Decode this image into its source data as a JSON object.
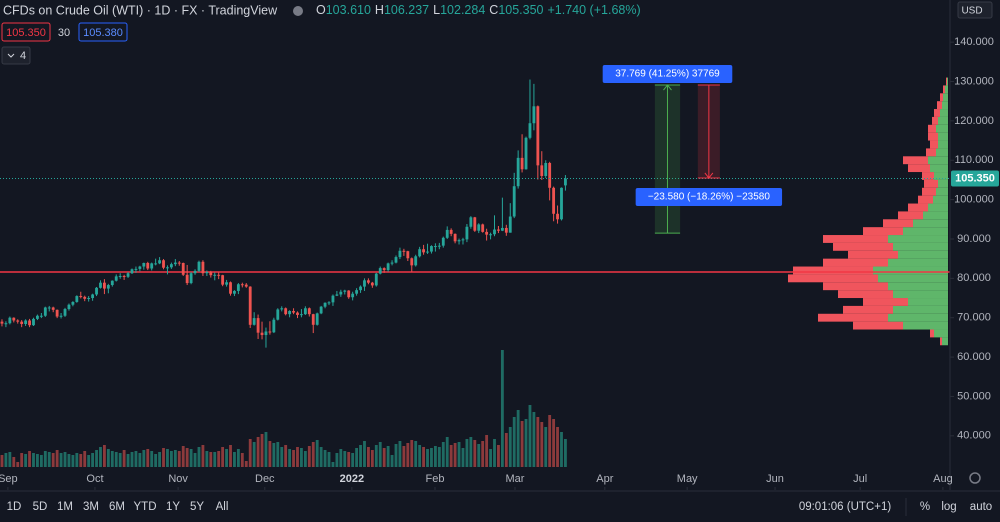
{
  "chart_data": {
    "type": "candlestick",
    "title": "CFDs on Crude Oil (WTI) · 1D · FX · TradingView",
    "header_ohlc": [
      {
        "label": "O",
        "value": "103.610"
      },
      {
        "label": "H",
        "value": "106.237"
      },
      {
        "label": "L",
        "value": "102.284"
      },
      {
        "label": "C",
        "value": "105.350"
      }
    ],
    "change": "+1.740 (+1.68%)",
    "bid": "105.350",
    "spread": "30",
    "ask": "105.380",
    "indicators": "4",
    "currency": "USD",
    "price_tag": "105.350",
    "up_color": "#26a69a",
    "down_color": "#ef5350",
    "volume_up_color": "#1f6b63",
    "volume_down_color": "#8c3a3c",
    "ylim": [
      27,
      150.7
    ],
    "yticks": [
      {
        "value": 40,
        "label": "40.000"
      },
      {
        "value": 50,
        "label": "50.000"
      },
      {
        "value": 60,
        "label": "60.000"
      },
      {
        "value": 70,
        "label": "70.000"
      },
      {
        "value": 80,
        "label": "80.000"
      },
      {
        "value": 90,
        "label": "90.000"
      },
      {
        "value": 100,
        "label": "100.000"
      },
      {
        "value": 110,
        "label": "110.000"
      },
      {
        "value": 120,
        "label": "120.000"
      },
      {
        "value": 130,
        "label": "130.000"
      },
      {
        "value": 140,
        "label": "140.000"
      }
    ],
    "xlim": [
      -0.5,
      240.6
    ],
    "xticks": [
      {
        "value": 1.5,
        "label": "Sep"
      },
      {
        "value": 23.6,
        "label": "Oct"
      },
      {
        "value": 44.7,
        "label": "Nov"
      },
      {
        "value": 66.7,
        "label": "Dec"
      },
      {
        "value": 88.8,
        "label": "2022"
      },
      {
        "value": 109.9,
        "label": "Feb"
      },
      {
        "value": 130.2,
        "label": "Mar"
      },
      {
        "value": 153,
        "label": "Apr"
      },
      {
        "value": 173.9,
        "label": "May"
      },
      {
        "value": 196.2,
        "label": "Jun"
      },
      {
        "value": 217.8,
        "label": "Jul"
      },
      {
        "value": 238.8,
        "label": "Aug"
      }
    ],
    "ohlc": [
      [
        69.0,
        69.6,
        67.8,
        68.5
      ],
      [
        68.5,
        69.1,
        67.6,
        68.6
      ],
      [
        68.6,
        70.3,
        68.3,
        70.0
      ],
      [
        70.0,
        70.1,
        68.8,
        69.3
      ],
      [
        69.3,
        69.6,
        68.5,
        69.0
      ],
      [
        69.0,
        69.4,
        67.6,
        68.4
      ],
      [
        68.4,
        69.6,
        67.9,
        69.3
      ],
      [
        69.3,
        69.7,
        67.6,
        68.1
      ],
      [
        68.1,
        70.0,
        67.9,
        69.7
      ],
      [
        69.7,
        70.8,
        69.4,
        70.5
      ],
      [
        70.5,
        71.2,
        69.9,
        70.5
      ],
      [
        70.5,
        72.8,
        70.2,
        72.6
      ],
      [
        72.6,
        73.0,
        71.6,
        72.6
      ],
      [
        72.6,
        72.8,
        71.4,
        72.0
      ],
      [
        72.0,
        72.1,
        69.9,
        70.3
      ],
      [
        70.3,
        71.2,
        69.8,
        70.5
      ],
      [
        70.5,
        72.5,
        70.2,
        72.2
      ],
      [
        72.2,
        73.6,
        71.8,
        73.3
      ],
      [
        73.3,
        74.2,
        72.9,
        74.0
      ],
      [
        74.0,
        75.7,
        73.8,
        75.5
      ],
      [
        75.5,
        76.6,
        74.9,
        75.3
      ],
      [
        75.3,
        75.6,
        74.2,
        74.8
      ],
      [
        74.8,
        75.5,
        74.1,
        75.0
      ],
      [
        75.0,
        76.1,
        74.3,
        75.9
      ],
      [
        75.9,
        77.8,
        75.5,
        77.6
      ],
      [
        77.6,
        79.5,
        77.4,
        78.9
      ],
      [
        78.9,
        79.8,
        76.0,
        77.4
      ],
      [
        77.4,
        78.6,
        76.2,
        78.3
      ],
      [
        78.3,
        79.5,
        77.9,
        79.4
      ],
      [
        79.4,
        81.0,
        79.2,
        80.5
      ],
      [
        80.5,
        81.3,
        79.9,
        80.6
      ],
      [
        80.6,
        80.9,
        79.6,
        80.4
      ],
      [
        80.4,
        81.6,
        80.1,
        81.3
      ],
      [
        81.3,
        82.5,
        81.1,
        82.3
      ],
      [
        82.3,
        83.0,
        81.4,
        82.4
      ],
      [
        82.4,
        83.2,
        81.8,
        83.0
      ],
      [
        83.0,
        84.0,
        82.2,
        83.9
      ],
      [
        83.9,
        84.2,
        82.1,
        82.5
      ],
      [
        82.5,
        84.0,
        82.0,
        83.8
      ],
      [
        83.8,
        85.0,
        83.3,
        83.8
      ],
      [
        83.8,
        85.4,
        83.6,
        84.6
      ],
      [
        84.6,
        84.9,
        82.3,
        82.7
      ],
      [
        82.7,
        83.3,
        81.0,
        82.8
      ],
      [
        82.8,
        84.0,
        82.4,
        83.6
      ],
      [
        83.6,
        84.9,
        83.1,
        84.0
      ],
      [
        84.0,
        84.4,
        83.2,
        83.9
      ],
      [
        83.9,
        84.0,
        80.6,
        80.9
      ],
      [
        80.9,
        83.4,
        78.3,
        78.8
      ],
      [
        78.8,
        81.6,
        78.5,
        81.3
      ],
      [
        81.3,
        82.3,
        80.9,
        81.9
      ],
      [
        81.9,
        84.5,
        81.6,
        84.2
      ],
      [
        84.2,
        84.6,
        80.6,
        81.3
      ],
      [
        81.3,
        82.0,
        80.6,
        81.6
      ],
      [
        81.6,
        81.9,
        80.2,
        80.8
      ],
      [
        80.8,
        81.5,
        79.5,
        80.9
      ],
      [
        80.9,
        81.5,
        79.8,
        80.8
      ],
      [
        80.8,
        80.9,
        78.0,
        78.4
      ],
      [
        78.4,
        79.6,
        77.9,
        79.0
      ],
      [
        79.0,
        79.2,
        75.6,
        76.1
      ],
      [
        76.1,
        77.0,
        75.5,
        76.8
      ],
      [
        76.8,
        78.8,
        76.0,
        78.5
      ],
      [
        78.5,
        78.9,
        77.7,
        78.4
      ],
      [
        78.4,
        78.8,
        77.6,
        77.9
      ],
      [
        77.9,
        78.0,
        67.4,
        68.2
      ],
      [
        68.2,
        71.4,
        68.0,
        69.9
      ],
      [
        69.9,
        70.8,
        64.6,
        66.2
      ],
      [
        66.2,
        69.0,
        64.5,
        65.6
      ],
      [
        65.6,
        67.5,
        62.4,
        66.5
      ],
      [
        66.5,
        69.1,
        65.7,
        66.3
      ],
      [
        66.3,
        70.0,
        66.1,
        69.5
      ],
      [
        69.5,
        72.4,
        69.3,
        72.1
      ],
      [
        72.1,
        72.9,
        71.6,
        72.4
      ],
      [
        72.4,
        72.6,
        70.6,
        70.9
      ],
      [
        70.9,
        71.9,
        70.1,
        71.7
      ],
      [
        71.7,
        72.4,
        70.9,
        71.3
      ],
      [
        71.3,
        71.6,
        69.9,
        70.7
      ],
      [
        70.7,
        72.2,
        70.1,
        70.9
      ],
      [
        70.9,
        72.9,
        70.7,
        72.4
      ],
      [
        72.4,
        72.6,
        70.3,
        70.9
      ],
      [
        70.9,
        71.0,
        66.1,
        68.2
      ],
      [
        68.2,
        71.3,
        68.0,
        71.1
      ],
      [
        71.1,
        73.0,
        70.9,
        72.8
      ],
      [
        72.8,
        73.9,
        72.4,
        73.8
      ],
      [
        73.8,
        74.2,
        73.2,
        73.9
      ],
      [
        73.9,
        75.9,
        73.0,
        75.6
      ],
      [
        75.6,
        76.8,
        75.5,
        75.9
      ],
      [
        75.9,
        77.1,
        75.3,
        76.6
      ],
      [
        76.6,
        77.1,
        75.9,
        76.9
      ],
      [
        76.9,
        77.0,
        74.8,
        75.2
      ],
      [
        75.2,
        76.6,
        74.4,
        76.1
      ],
      [
        76.1,
        77.5,
        75.6,
        77.0
      ],
      [
        77.0,
        78.2,
        76.3,
        77.9
      ],
      [
        77.9,
        80.0,
        76.8,
        79.5
      ],
      [
        79.5,
        80.0,
        78.5,
        78.9
      ],
      [
        78.9,
        79.1,
        77.6,
        78.2
      ],
      [
        78.2,
        81.4,
        77.9,
        81.2
      ],
      [
        81.2,
        83.0,
        81.0,
        82.6
      ],
      [
        82.6,
        82.8,
        81.4,
        82.1
      ],
      [
        82.1,
        84.0,
        81.7,
        83.8
      ],
      [
        83.8,
        84.6,
        83.3,
        84.0
      ],
      [
        84.0,
        85.8,
        83.8,
        85.4
      ],
      [
        85.4,
        87.8,
        84.9,
        87.0
      ],
      [
        87.0,
        87.5,
        85.7,
        86.9
      ],
      [
        86.9,
        87.0,
        84.4,
        85.1
      ],
      [
        85.1,
        85.3,
        81.7,
        83.3
      ],
      [
        83.3,
        86.0,
        83.0,
        85.6
      ],
      [
        85.6,
        88.0,
        85.3,
        87.4
      ],
      [
        87.4,
        88.5,
        86.0,
        86.6
      ],
      [
        86.6,
        88.8,
        86.2,
        86.8
      ],
      [
        86.8,
        88.4,
        86.3,
        88.2
      ],
      [
        88.2,
        88.9,
        86.8,
        88.2
      ],
      [
        88.2,
        89.0,
        87.4,
        88.3
      ],
      [
        88.3,
        90.6,
        87.8,
        90.3
      ],
      [
        90.3,
        93.2,
        90.0,
        92.3
      ],
      [
        92.3,
        92.7,
        90.7,
        91.3
      ],
      [
        91.3,
        91.4,
        88.9,
        89.4
      ],
      [
        89.4,
        90.1,
        88.6,
        89.7
      ],
      [
        89.7,
        90.3,
        88.6,
        89.9
      ],
      [
        89.9,
        93.8,
        89.2,
        93.1
      ],
      [
        93.1,
        95.8,
        92.6,
        95.5
      ],
      [
        95.5,
        95.6,
        91.8,
        92.1
      ],
      [
        92.1,
        94.0,
        91.5,
        93.7
      ],
      [
        93.7,
        93.9,
        91.6,
        91.8
      ],
      [
        91.8,
        92.6,
        89.6,
        91.1
      ],
      [
        91.1,
        91.6,
        89.9,
        91.2
      ],
      [
        91.2,
        96.0,
        90.7,
        92.4
      ],
      [
        92.4,
        93.3,
        91.5,
        92.1
      ],
      [
        92.1,
        100.5,
        92.0,
        92.8
      ],
      [
        92.8,
        93.6,
        90.8,
        91.6
      ],
      [
        91.6,
        99.1,
        91.6,
        95.7
      ],
      [
        95.7,
        106.8,
        95.3,
        103.4
      ],
      [
        103.4,
        112.5,
        102.8,
        110.6
      ],
      [
        110.6,
        116.6,
        106.9,
        107.7
      ],
      [
        107.7,
        116.0,
        107.6,
        115.7
      ],
      [
        115.7,
        130.5,
        115.3,
        119.4
      ],
      [
        119.4,
        129.4,
        117.6,
        123.7
      ],
      [
        123.7,
        123.9,
        105.1,
        108.7
      ],
      [
        108.7,
        112.3,
        105.0,
        106.0
      ],
      [
        106.0,
        110.0,
        105.5,
        109.3
      ],
      [
        109.3,
        109.6,
        99.8,
        103.0
      ],
      [
        103.0,
        103.3,
        94.5,
        96.4
      ],
      [
        96.4,
        98.5,
        93.9,
        95.0
      ],
      [
        95.0,
        103.1,
        94.7,
        103.0
      ],
      [
        103.61,
        106.237,
        102.284,
        105.35
      ]
    ],
    "volume": [
      12,
      14,
      15,
      10,
      5,
      14,
      13,
      16,
      14,
      13,
      12,
      16,
      15,
      14,
      17,
      14,
      15,
      13,
      12,
      14,
      13,
      16,
      12,
      14,
      17,
      20,
      22,
      18,
      16,
      15,
      14,
      17,
      13,
      15,
      16,
      14,
      17,
      18,
      16,
      13,
      15,
      19,
      18,
      16,
      17,
      16,
      21,
      19,
      18,
      14,
      20,
      22,
      16,
      15,
      15,
      16,
      20,
      18,
      22,
      15,
      18,
      14,
      6,
      28,
      25,
      30,
      33,
      35,
      26,
      24,
      25,
      20,
      22,
      18,
      17,
      20,
      19,
      16,
      21,
      25,
      27,
      20,
      17,
      15,
      5,
      14,
      18,
      16,
      15,
      14,
      19,
      22,
      26,
      20,
      17,
      22,
      25,
      19,
      21,
      12,
      23,
      26,
      21,
      24,
      27,
      26,
      22,
      20,
      18,
      19,
      21,
      20,
      25,
      30,
      22,
      24,
      25,
      19,
      28,
      30,
      27,
      23,
      26,
      32,
      18,
      28,
      22,
      117,
      34,
      40,
      50,
      57,
      46,
      48,
      62,
      55,
      50,
      45,
      40,
      52,
      48,
      40,
      35,
      28
    ],
    "profile": {
      "up_color": "#5fb66a",
      "down_color": "#f0555d",
      "prices": [
        64,
        66,
        68,
        70,
        72,
        74,
        76,
        78,
        80,
        82,
        84,
        86,
        88,
        90,
        92,
        94,
        96,
        98,
        100,
        102,
        104,
        106,
        108,
        110,
        112,
        114,
        116,
        118,
        120,
        122,
        124,
        126,
        128,
        130
      ],
      "up": [
        6,
        14,
        45,
        60,
        55,
        40,
        55,
        60,
        70,
        75,
        60,
        50,
        55,
        60,
        45,
        35,
        25,
        20,
        15,
        12,
        10,
        14,
        18,
        20,
        12,
        10,
        10,
        12,
        10,
        8,
        6,
        5,
        3,
        1
      ],
      "down": [
        2,
        4,
        50,
        70,
        50,
        45,
        55,
        65,
        90,
        80,
        65,
        50,
        60,
        65,
        40,
        30,
        25,
        20,
        15,
        14,
        14,
        12,
        22,
        25,
        10,
        8,
        10,
        8,
        6,
        6,
        5,
        3,
        2,
        1
      ]
    },
    "hline": {
      "value": 81.6,
      "color": "#f23645"
    },
    "measures": [
      {
        "from": 91.5,
        "to": 129.1,
        "x": [
          165.7,
          172.1
        ],
        "color": "#4caf50",
        "label": "37.769 (41.25%) 37769"
      },
      {
        "from": 129.1,
        "to": 105.5,
        "x": [
          176.6,
          182.2
        ],
        "color": "#f23645",
        "label": "−23.580 (−18.26%) −23580"
      }
    ],
    "periods": [
      "1D",
      "5D",
      "1M",
      "3M",
      "6M",
      "YTD",
      "1Y",
      "5Y",
      "All"
    ],
    "clock": "09:01:06 (UTC+1)",
    "toggles": [
      "%",
      "log",
      "auto"
    ]
  }
}
